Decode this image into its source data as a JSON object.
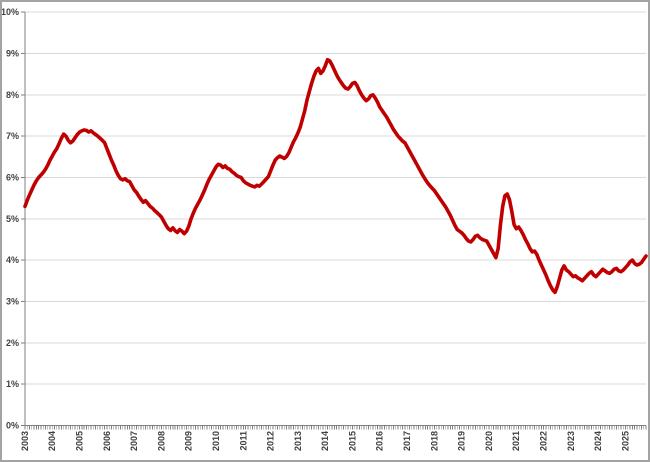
{
  "chart_data": {
    "type": "line",
    "title": "",
    "xlabel": "",
    "ylabel": "",
    "series_name": "unemployment-rate-percent",
    "unit": "%",
    "frequency": "monthly",
    "start": "2003-01",
    "end": "2025-10",
    "ylim": [
      0,
      10
    ],
    "grid": true,
    "legend_position": "none",
    "line_color": "#C00000",
    "grid_color": "#D9D9D9",
    "axis_color": "#808080",
    "label_color": "#404040",
    "border_color": "#A3A3A3",
    "background_color": "#FFFFFF",
    "y_tick_labels": [
      "0%",
      "1%",
      "2%",
      "3%",
      "4%",
      "5%",
      "6%",
      "7%",
      "8%",
      "9%",
      "10%"
    ],
    "x_tick_labels": [
      "2003",
      "2004",
      "2005",
      "2006",
      "2007",
      "2008",
      "2009",
      "2010",
      "2011",
      "2012",
      "2013",
      "2014",
      "2015",
      "2016",
      "2017",
      "2018",
      "2019",
      "2020",
      "2021",
      "2022",
      "2023",
      "2024",
      "2025"
    ],
    "values": [
      5.3,
      5.45,
      5.58,
      5.7,
      5.82,
      5.92,
      6.0,
      6.06,
      6.12,
      6.2,
      6.3,
      6.42,
      6.52,
      6.62,
      6.7,
      6.82,
      6.95,
      7.05,
      7.0,
      6.9,
      6.84,
      6.88,
      6.96,
      7.04,
      7.1,
      7.13,
      7.15,
      7.14,
      7.1,
      7.13,
      7.08,
      7.04,
      7.0,
      6.95,
      6.9,
      6.84,
      6.7,
      6.56,
      6.42,
      6.3,
      6.16,
      6.05,
      5.97,
      5.94,
      5.97,
      5.92,
      5.9,
      5.8,
      5.7,
      5.64,
      5.55,
      5.47,
      5.4,
      5.44,
      5.37,
      5.3,
      5.26,
      5.2,
      5.15,
      5.1,
      5.04,
      4.94,
      4.84,
      4.76,
      4.72,
      4.78,
      4.71,
      4.67,
      4.74,
      4.7,
      4.64,
      4.7,
      4.82,
      5.0,
      5.14,
      5.26,
      5.36,
      5.46,
      5.58,
      5.7,
      5.84,
      5.96,
      6.06,
      6.16,
      6.26,
      6.32,
      6.3,
      6.24,
      6.28,
      6.22,
      6.2,
      6.14,
      6.1,
      6.05,
      6.02,
      6.0,
      5.92,
      5.87,
      5.84,
      5.81,
      5.79,
      5.77,
      5.81,
      5.79,
      5.84,
      5.9,
      5.96,
      6.02,
      6.16,
      6.3,
      6.42,
      6.48,
      6.52,
      6.49,
      6.46,
      6.51,
      6.6,
      6.73,
      6.86,
      6.96,
      7.08,
      7.22,
      7.42,
      7.62,
      7.88,
      8.08,
      8.28,
      8.45,
      8.58,
      8.64,
      8.52,
      8.58,
      8.7,
      8.85,
      8.82,
      8.72,
      8.6,
      8.48,
      8.38,
      8.3,
      8.22,
      8.16,
      8.14,
      8.2,
      8.28,
      8.3,
      8.22,
      8.1,
      8.0,
      7.92,
      7.86,
      7.9,
      7.98,
      8.0,
      7.92,
      7.82,
      7.7,
      7.62,
      7.54,
      7.46,
      7.36,
      7.26,
      7.16,
      7.08,
      7.0,
      6.94,
      6.88,
      6.84,
      6.74,
      6.64,
      6.54,
      6.44,
      6.34,
      6.24,
      6.14,
      6.04,
      5.95,
      5.87,
      5.8,
      5.74,
      5.68,
      5.6,
      5.52,
      5.44,
      5.36,
      5.28,
      5.18,
      5.08,
      4.96,
      4.84,
      4.74,
      4.7,
      4.66,
      4.6,
      4.52,
      4.46,
      4.44,
      4.5,
      4.58,
      4.6,
      4.54,
      4.5,
      4.48,
      4.46,
      4.36,
      4.26,
      4.16,
      4.06,
      4.28,
      4.85,
      5.3,
      5.56,
      5.6,
      5.46,
      5.18,
      4.86,
      4.76,
      4.8,
      4.72,
      4.62,
      4.5,
      4.4,
      4.28,
      4.2,
      4.22,
      4.14,
      4.0,
      3.88,
      3.76,
      3.64,
      3.5,
      3.38,
      3.28,
      3.22,
      3.36,
      3.56,
      3.76,
      3.86,
      3.76,
      3.72,
      3.66,
      3.6,
      3.62,
      3.57,
      3.54,
      3.5,
      3.56,
      3.62,
      3.68,
      3.72,
      3.64,
      3.6,
      3.66,
      3.72,
      3.78,
      3.74,
      3.7,
      3.68,
      3.72,
      3.78,
      3.8,
      3.74,
      3.72,
      3.76,
      3.82,
      3.88,
      3.96,
      4.0,
      3.92,
      3.88,
      3.9,
      3.94,
      4.02,
      4.1
    ]
  }
}
